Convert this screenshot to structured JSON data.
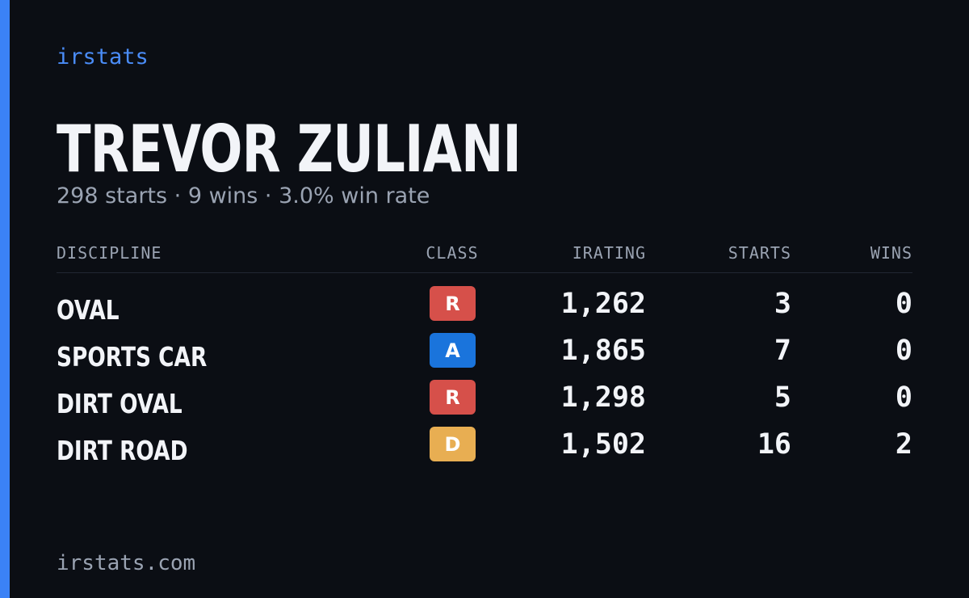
{
  "brand": "irstats",
  "name": "TREVOR ZULIANI",
  "summary": "298 starts · 9 wins · 3.0% win rate",
  "table": {
    "headers": [
      "DISCIPLINE",
      "CLASS",
      "IRATING",
      "STARTS",
      "WINS"
    ],
    "rows": [
      [
        "OVAL",
        "R",
        "1,262",
        "3",
        "0"
      ],
      [
        "SPORTS CAR",
        "A",
        "1,865",
        "7",
        "0"
      ],
      [
        "DIRT OVAL",
        "R",
        "1,298",
        "5",
        "0"
      ],
      [
        "DIRT ROAD",
        "D",
        "1,502",
        "16",
        "2"
      ]
    ],
    "class_colors": {
      "R": "#d6504a",
      "A": "#1a74dc",
      "D": "#e8ae52"
    }
  },
  "footer": "irstats.com"
}
